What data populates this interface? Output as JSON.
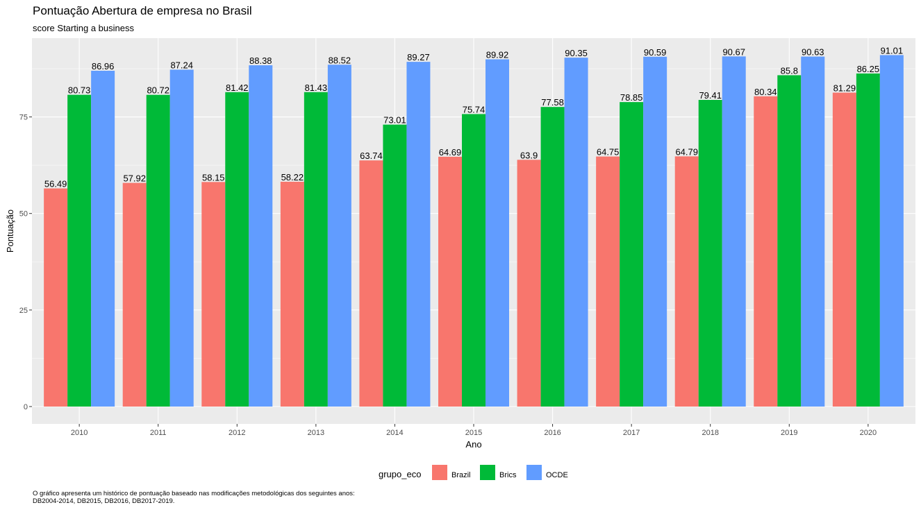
{
  "chart_data": {
    "type": "bar",
    "title": "Pontuação Abertura de empresa no Brasil",
    "subtitle": "score Starting a business",
    "xlabel": "Ano",
    "ylabel": "Pontuação",
    "ylim": [
      0,
      95.5
    ],
    "yticks": [
      "0",
      "25",
      "50",
      "75"
    ],
    "categories": [
      "2010",
      "2011",
      "2012",
      "2013",
      "2014",
      "2015",
      "2016",
      "2017",
      "2018",
      "2019",
      "2020"
    ],
    "series": [
      {
        "name": "Brazil",
        "color": "#F8766D",
        "values": [
          56.49,
          57.92,
          58.15,
          58.22,
          63.74,
          64.69,
          63.9,
          64.75,
          64.79,
          80.34,
          81.29
        ],
        "labels": [
          "56.49",
          "57.92",
          "58.15",
          "58.22",
          "63.74",
          "64.69",
          "63.9",
          "64.75",
          "64.79",
          "80.34",
          "81.29"
        ]
      },
      {
        "name": "Brics",
        "color": "#00BA38",
        "values": [
          80.73,
          80.72,
          81.42,
          81.43,
          73.01,
          75.74,
          77.58,
          78.85,
          79.41,
          85.8,
          86.25
        ],
        "labels": [
          "80.73",
          "80.72",
          "81.42",
          "81.43",
          "73.01",
          "75.74",
          "77.58",
          "78.85",
          "79.41",
          "85.8",
          "86.25"
        ]
      },
      {
        "name": "OCDE",
        "color": "#619CFF",
        "values": [
          86.96,
          87.24,
          88.38,
          88.52,
          89.27,
          89.92,
          90.35,
          90.59,
          90.67,
          90.63,
          91.01
        ],
        "labels": [
          "86.96",
          "87.24",
          "88.38",
          "88.52",
          "89.27",
          "89.92",
          "90.35",
          "90.59",
          "90.67",
          "90.63",
          "91.01"
        ]
      }
    ],
    "legend": {
      "title": "grupo_eco",
      "position": "bottom"
    },
    "caption": [
      "O gráfico apresenta um histórico de pontuação baseado nas modificações metodológicas dos seguintes anos:",
      "DB2004-2014, DB2015, DB2016, DB2017-2019."
    ],
    "colors": {
      "panel_background": "#EBEBEB",
      "grid": "#FFFFFF"
    },
    "grid": true
  }
}
